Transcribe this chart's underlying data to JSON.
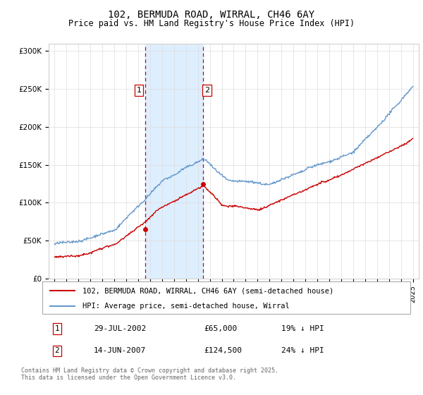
{
  "title": "102, BERMUDA ROAD, WIRRAL, CH46 6AY",
  "subtitle": "Price paid vs. HM Land Registry's House Price Index (HPI)",
  "background_color": "#ffffff",
  "plot_bg_color": "#ffffff",
  "grid_color": "#dddddd",
  "ylim": [
    0,
    310000
  ],
  "yticks": [
    0,
    50000,
    100000,
    150000,
    200000,
    250000,
    300000
  ],
  "ytick_labels": [
    "£0",
    "£50K",
    "£100K",
    "£150K",
    "£200K",
    "£250K",
    "£300K"
  ],
  "xlim_start": 1994.5,
  "xlim_end": 2025.5,
  "purchase1_date": 2002.57,
  "purchase1_price": 65000,
  "purchase1_label": "1",
  "purchase2_date": 2007.45,
  "purchase2_price": 124500,
  "purchase2_label": "2",
  "shade_color": "#ddeeff",
  "vline_color": "#cc0000",
  "red_line_color": "#cc0000",
  "blue_line_color": "#6699cc",
  "legend_label_red": "102, BERMUDA ROAD, WIRRAL, CH46 6AY (semi-detached house)",
  "legend_label_blue": "HPI: Average price, semi-detached house, Wirral",
  "table_row1": [
    "1",
    "29-JUL-2002",
    "£65,000",
    "19% ↓ HPI"
  ],
  "table_row2": [
    "2",
    "14-JUN-2007",
    "£124,500",
    "24% ↓ HPI"
  ],
  "footer": "Contains HM Land Registry data © Crown copyright and database right 2025.\nThis data is licensed under the Open Government Licence v3.0.",
  "title_fontsize": 10,
  "subtitle_fontsize": 8.5,
  "tick_fontsize": 7.5,
  "legend_fontsize": 7.5,
  "table_fontsize": 8,
  "footer_fontsize": 6
}
